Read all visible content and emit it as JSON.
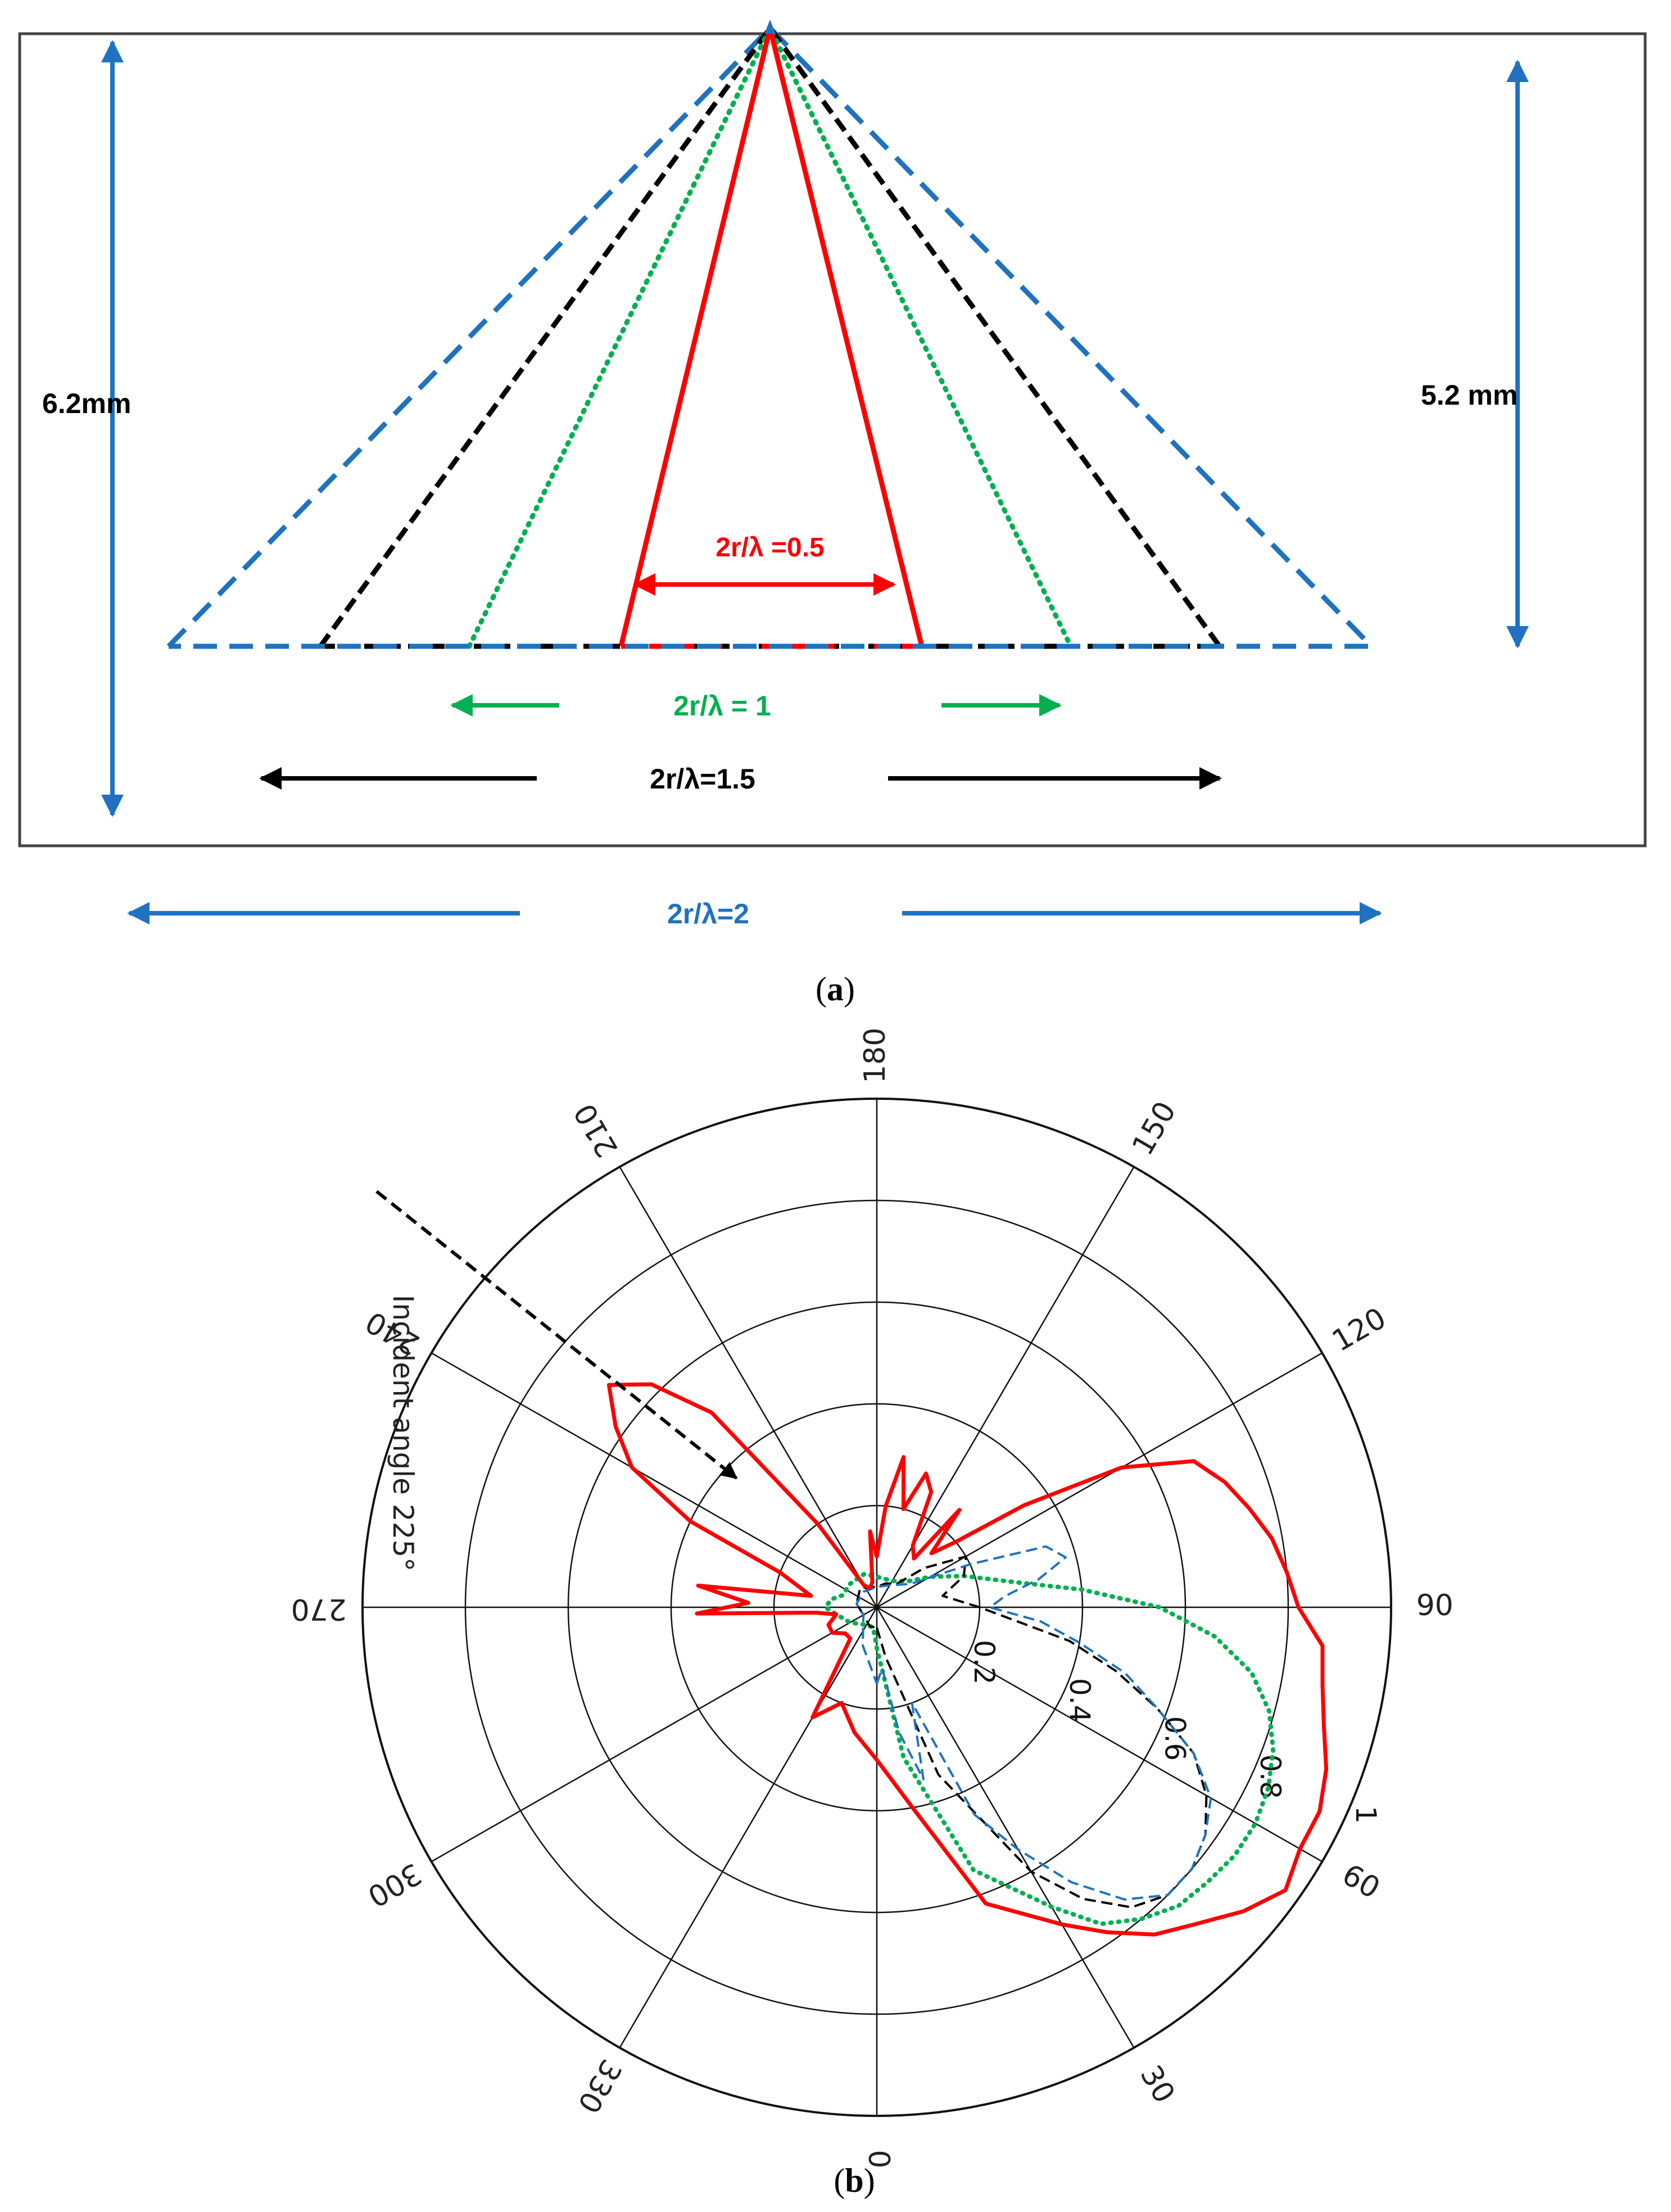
{
  "panel_a": {
    "caption_letter": "a",
    "left_height_label": "6.2mm",
    "right_height_label": "5.2 mm",
    "cones": [
      {
        "label": "2r/λ =0.5",
        "color": "#ff0000",
        "style": "solid"
      },
      {
        "label": "2r/λ = 1",
        "color": "#00b050",
        "style": "dotted"
      },
      {
        "label": "2r/λ=1.5",
        "color": "#000000",
        "style": "dashed"
      },
      {
        "label": "2r/λ=2",
        "color": "#1f72c0",
        "style": "dashed"
      }
    ]
  },
  "panel_b": {
    "caption_letter": "b",
    "annotation": "Incident angle 225°",
    "angle_labels": [
      "0",
      "30",
      "60",
      "90",
      "120",
      "150",
      "180",
      "210",
      "240",
      "270",
      "300",
      "330"
    ],
    "radial_labels": [
      "0.2",
      "0.4",
      "0.6",
      "0.8",
      "1"
    ]
  },
  "chart_data": {
    "type": "polar",
    "rlim": [
      0,
      1
    ],
    "radial_ticks": [
      0.2,
      0.4,
      0.6,
      0.8,
      1
    ],
    "angle_ticks": [
      0,
      30,
      60,
      90,
      120,
      150,
      180,
      210,
      240,
      270,
      300,
      330
    ],
    "series": [
      {
        "color": "#ff0000",
        "style": "solid",
        "points": [
          [
            0,
            0.3
          ],
          [
            10,
            0.4
          ],
          [
            20,
            0.62
          ],
          [
            30,
            0.72
          ],
          [
            35,
            0.78
          ],
          [
            40,
            0.84
          ],
          [
            45,
            0.88
          ],
          [
            50,
            0.93
          ],
          [
            55,
            0.97
          ],
          [
            60,
            0.95
          ],
          [
            65,
            0.95
          ],
          [
            70,
            0.93
          ],
          [
            75,
            0.9
          ],
          [
            80,
            0.88
          ],
          [
            85,
            0.87
          ],
          [
            90,
            0.82
          ],
          [
            95,
            0.8
          ],
          [
            100,
            0.78
          ],
          [
            105,
            0.75
          ],
          [
            110,
            0.72
          ],
          [
            115,
            0.68
          ],
          [
            120,
            0.55
          ],
          [
            125,
            0.35
          ],
          [
            130,
            0.2
          ],
          [
            135,
            0.15
          ],
          [
            140,
            0.25
          ],
          [
            143,
            0.12
          ],
          [
            150,
            0.14
          ],
          [
            155,
            0.25
          ],
          [
            160,
            0.28
          ],
          [
            165,
            0.2
          ],
          [
            170,
            0.3
          ],
          [
            175,
            0.2
          ],
          [
            180,
            0.1
          ],
          [
            185,
            0.15
          ],
          [
            190,
            0.05
          ],
          [
            200,
            0.04
          ],
          [
            210,
            0.05
          ],
          [
            215,
            0.2
          ],
          [
            220,
            0.5
          ],
          [
            225,
            0.62
          ],
          [
            230,
            0.68
          ],
          [
            235,
            0.62
          ],
          [
            240,
            0.55
          ],
          [
            245,
            0.4
          ],
          [
            250,
            0.2
          ],
          [
            260,
            0.13
          ],
          [
            263,
            0.35
          ],
          [
            268,
            0.25
          ],
          [
            272,
            0.35
          ],
          [
            275,
            0.12
          ],
          [
            280,
            0.08
          ],
          [
            290,
            0.1
          ],
          [
            300,
            0.1
          ],
          [
            310,
            0.08
          ],
          [
            320,
            0.08
          ],
          [
            330,
            0.25
          ],
          [
            340,
            0.2
          ],
          [
            350,
            0.25
          ]
        ]
      },
      {
        "color": "#00b050",
        "style": "dotted",
        "points": [
          [
            0,
            0.08
          ],
          [
            10,
            0.3
          ],
          [
            20,
            0.55
          ],
          [
            30,
            0.68
          ],
          [
            35,
            0.76
          ],
          [
            40,
            0.8
          ],
          [
            45,
            0.83
          ],
          [
            50,
            0.84
          ],
          [
            55,
            0.85
          ],
          [
            60,
            0.85
          ],
          [
            65,
            0.84
          ],
          [
            70,
            0.82
          ],
          [
            75,
            0.79
          ],
          [
            80,
            0.74
          ],
          [
            85,
            0.66
          ],
          [
            90,
            0.55
          ],
          [
            95,
            0.4
          ],
          [
            100,
            0.28
          ],
          [
            110,
            0.18
          ],
          [
            120,
            0.12
          ],
          [
            130,
            0.08
          ],
          [
            150,
            0.06
          ],
          [
            180,
            0.06
          ],
          [
            200,
            0.07
          ],
          [
            230,
            0.07
          ],
          [
            250,
            0.07
          ],
          [
            260,
            0.09
          ],
          [
            270,
            0.1
          ],
          [
            280,
            0.08
          ],
          [
            300,
            0.06
          ],
          [
            330,
            0.04
          ],
          [
            350,
            0.04
          ]
        ]
      },
      {
        "color": "#000000",
        "style": "dashed",
        "points": [
          [
            0,
            0.04
          ],
          [
            10,
            0.1
          ],
          [
            20,
            0.35
          ],
          [
            30,
            0.6
          ],
          [
            35,
            0.7
          ],
          [
            40,
            0.77
          ],
          [
            45,
            0.8
          ],
          [
            50,
            0.8
          ],
          [
            55,
            0.78
          ],
          [
            60,
            0.74
          ],
          [
            65,
            0.68
          ],
          [
            70,
            0.58
          ],
          [
            75,
            0.48
          ],
          [
            80,
            0.38
          ],
          [
            90,
            0.2
          ],
          [
            100,
            0.13
          ],
          [
            110,
            0.18
          ],
          [
            120,
            0.2
          ],
          [
            130,
            0.12
          ],
          [
            140,
            0.06
          ],
          [
            160,
            0.05
          ],
          [
            180,
            0.04
          ],
          [
            220,
            0.05
          ],
          [
            260,
            0.04
          ],
          [
            300,
            0.03
          ],
          [
            340,
            0.04
          ]
        ]
      },
      {
        "color": "#1f72c0",
        "style": "dashed",
        "points": [
          [
            0,
            0.15
          ],
          [
            5,
            0.12
          ],
          [
            10,
            0.25
          ],
          [
            15,
            0.35
          ],
          [
            20,
            0.2
          ],
          [
            25,
            0.45
          ],
          [
            30,
            0.55
          ],
          [
            35,
            0.66
          ],
          [
            40,
            0.75
          ],
          [
            45,
            0.8
          ],
          [
            50,
            0.8
          ],
          [
            55,
            0.78
          ],
          [
            60,
            0.75
          ],
          [
            65,
            0.68
          ],
          [
            70,
            0.58
          ],
          [
            75,
            0.5
          ],
          [
            80,
            0.4
          ],
          [
            85,
            0.32
          ],
          [
            90,
            0.22
          ],
          [
            95,
            0.25
          ],
          [
            100,
            0.32
          ],
          [
            105,
            0.38
          ],
          [
            110,
            0.35
          ],
          [
            115,
            0.2
          ],
          [
            125,
            0.08
          ],
          [
            150,
            0.05
          ],
          [
            180,
            0.04
          ],
          [
            220,
            0.04
          ],
          [
            260,
            0.04
          ],
          [
            300,
            0.03
          ],
          [
            340,
            0.08
          ]
        ]
      }
    ],
    "annotation": "Incident angle 225°"
  }
}
